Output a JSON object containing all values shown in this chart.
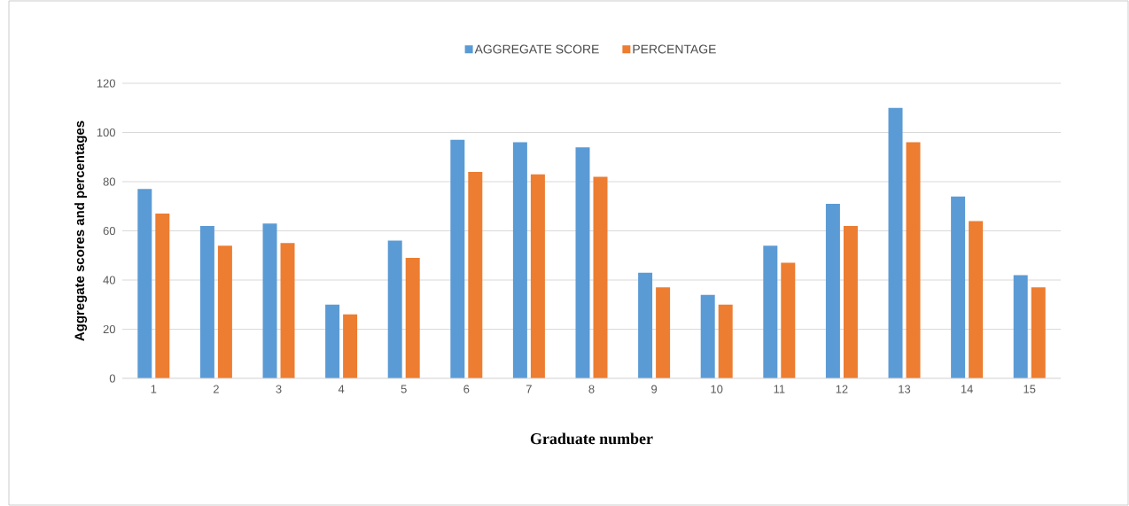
{
  "chart_data": {
    "type": "bar",
    "xlabel": "Graduate number",
    "ylabel": "Aggregate scores and percentages",
    "categories": [
      "1",
      "2",
      "3",
      "4",
      "5",
      "6",
      "7",
      "8",
      "9",
      "10",
      "11",
      "12",
      "13",
      "14",
      "15"
    ],
    "series": [
      {
        "name": "AGGREGATE SCORE",
        "color": "#5b9bd5",
        "values": [
          77,
          62,
          63,
          30,
          56,
          97,
          96,
          94,
          43,
          34,
          54,
          71,
          110,
          74,
          42
        ]
      },
      {
        "name": "PERCENTAGE",
        "color": "#ed7d31",
        "values": [
          67,
          54,
          55,
          26,
          49,
          84,
          83,
          82,
          37,
          30,
          47,
          62,
          96,
          64,
          37
        ]
      }
    ],
    "ylim": [
      0,
      120
    ],
    "yticks": [
      0,
      20,
      40,
      60,
      80,
      100,
      120
    ],
    "grid": "y",
    "legend": "top"
  }
}
